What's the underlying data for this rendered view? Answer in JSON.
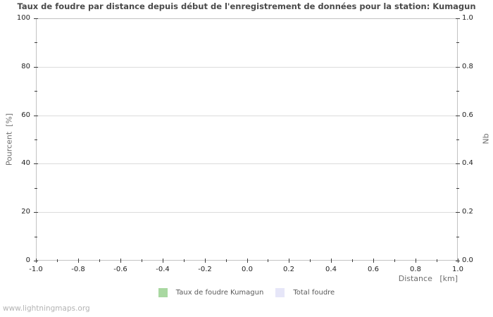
{
  "watermark": "www.lightningmaps.org",
  "chart_data": {
    "type": "line",
    "title": "Taux de foudre par distance depuis début de l'enregistrement de données pour la station: Kumagun",
    "xlabel": "Distance   [km]",
    "ylabel_left": "Pourcent  [%]",
    "ylabel_right": "Nb",
    "xlim": [
      -1.0,
      1.0
    ],
    "ylim_left": [
      0,
      100
    ],
    "ylim_right": [
      0.0,
      1.0
    ],
    "x_ticks": [
      "-1.0",
      "-0.8",
      "-0.6",
      "-0.4",
      "-0.2",
      "0.0",
      "0.2",
      "0.4",
      "0.6",
      "0.8",
      "1.0"
    ],
    "y_ticks_left": [
      "0",
      "20",
      "40",
      "60",
      "80",
      "100"
    ],
    "y_ticks_right": [
      "0.0",
      "0.2",
      "0.4",
      "0.6",
      "0.8",
      "1.0"
    ],
    "grid": "horizontal-only",
    "legend_position": "bottom-center",
    "legend": [
      {
        "label": "Taux de foudre Kumagun",
        "color": "#a9d8a1"
      },
      {
        "label": "Total foudre",
        "color": "#e6e6f8"
      }
    ],
    "series": [
      {
        "name": "Taux de foudre Kumagun",
        "x": [],
        "values": []
      },
      {
        "name": "Total foudre",
        "x": [],
        "values": []
      }
    ]
  },
  "colors": {
    "grid": "#dcdcdc",
    "plot_border": "#c3c3c3",
    "title_text": "#4a4a4a",
    "tick_text": "#1f1f1f",
    "axis_title_text": "#6e6e6e",
    "watermark_text": "#b3b3b3"
  }
}
